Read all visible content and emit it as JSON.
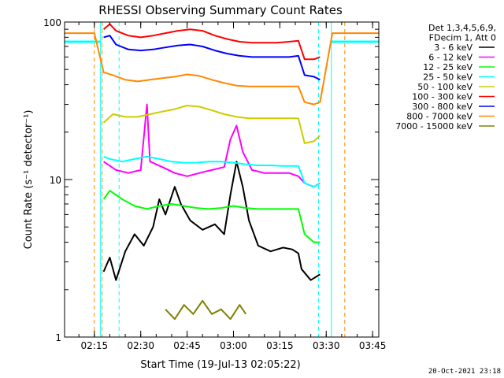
{
  "chart_data": {
    "type": "line",
    "title": "RHESSI Observing Summary Count Rates",
    "xlabel": "Start Time (19-Jul-13 02:05:22)",
    "ylabel": "Count Rate (s⁻¹ detector⁻¹)",
    "x_scale": "time",
    "xlim": [
      "02:05:22",
      "03:47:00"
    ],
    "x_ticks": [
      "02:15",
      "02:30",
      "02:45",
      "03:00",
      "03:15",
      "03:30",
      "03:45"
    ],
    "y_scale": "log",
    "ylim": [
      1,
      100
    ],
    "y_ticks": [
      "1",
      "10",
      "100"
    ],
    "legend": {
      "placement": "right",
      "header": [
        "Det 1,3,4,5,6,9,",
        "FDecim 1, Att 0"
      ]
    },
    "series": [
      {
        "name": "3 - 6 keV",
        "color": "#000000",
        "points": [
          [
            "02:18",
            2.6
          ],
          [
            "02:20",
            3.2
          ],
          [
            "02:22",
            2.3
          ],
          [
            "02:25",
            3.5
          ],
          [
            "02:28",
            4.5
          ],
          [
            "02:31",
            3.8
          ],
          [
            "02:34",
            5.0
          ],
          [
            "02:36",
            7.5
          ],
          [
            "02:38",
            6.0
          ],
          [
            "02:41",
            9.0
          ],
          [
            "02:43",
            7.0
          ],
          [
            "02:46",
            5.5
          ],
          [
            "02:50",
            4.8
          ],
          [
            "02:54",
            5.2
          ],
          [
            "02:57",
            4.5
          ],
          [
            "02:59",
            8.0
          ],
          [
            "03:01",
            13.0
          ],
          [
            "03:03",
            9.0
          ],
          [
            "03:05",
            5.5
          ],
          [
            "03:08",
            3.8
          ],
          [
            "03:12",
            3.5
          ],
          [
            "03:16",
            3.7
          ],
          [
            "03:19",
            3.6
          ],
          [
            "03:21",
            3.4
          ],
          [
            "03:22",
            2.7
          ],
          [
            "03:25",
            2.3
          ],
          [
            "03:28",
            2.5
          ]
        ]
      },
      {
        "name": "6 - 12 keV",
        "color": "#ff00ff",
        "points": [
          [
            "02:18",
            13.0
          ],
          [
            "02:22",
            11.5
          ],
          [
            "02:26",
            11.0
          ],
          [
            "02:30",
            11.5
          ],
          [
            "02:32",
            30.0
          ],
          [
            "02:33",
            13.0
          ],
          [
            "02:37",
            12.0
          ],
          [
            "02:41",
            11.0
          ],
          [
            "02:45",
            10.5
          ],
          [
            "02:49",
            11.0
          ],
          [
            "02:53",
            11.5
          ],
          [
            "02:57",
            12.0
          ],
          [
            "02:59",
            18.0
          ],
          [
            "03:01",
            22.0
          ],
          [
            "03:03",
            15.0
          ],
          [
            "03:06",
            11.5
          ],
          [
            "03:10",
            11.0
          ],
          [
            "03:14",
            11.0
          ],
          [
            "03:18",
            11.0
          ],
          [
            "03:21",
            10.5
          ],
          [
            "03:23",
            9.5
          ],
          [
            "03:26",
            9.0
          ],
          [
            "03:28",
            9.5
          ]
        ]
      },
      {
        "name": "12 - 25 keV",
        "color": "#00ff00",
        "points": [
          [
            "02:18",
            7.5
          ],
          [
            "02:20",
            8.5
          ],
          [
            "02:24",
            7.5
          ],
          [
            "02:28",
            6.8
          ],
          [
            "02:32",
            6.5
          ],
          [
            "02:36",
            6.8
          ],
          [
            "02:40",
            7.0
          ],
          [
            "02:44",
            6.8
          ],
          [
            "02:48",
            6.6
          ],
          [
            "02:52",
            6.5
          ],
          [
            "02:56",
            6.6
          ],
          [
            "03:00",
            6.8
          ],
          [
            "03:04",
            6.6
          ],
          [
            "03:08",
            6.5
          ],
          [
            "03:12",
            6.5
          ],
          [
            "03:16",
            6.5
          ],
          [
            "03:21",
            6.5
          ],
          [
            "03:23",
            4.5
          ],
          [
            "03:26",
            4.0
          ],
          [
            "03:28",
            4.0
          ]
        ]
      },
      {
        "name": "25 - 50 keV",
        "color": "#00ffff",
        "points": [
          [
            "02:18",
            14.0
          ],
          [
            "02:20",
            13.5
          ],
          [
            "02:24",
            13.0
          ],
          [
            "02:28",
            13.5
          ],
          [
            "02:32",
            14.0
          ],
          [
            "02:36",
            13.5
          ],
          [
            "02:40",
            13.0
          ],
          [
            "02:44",
            12.8
          ],
          [
            "02:48",
            12.8
          ],
          [
            "02:52",
            13.0
          ],
          [
            "02:56",
            13.0
          ],
          [
            "03:00",
            12.8
          ],
          [
            "03:04",
            12.5
          ],
          [
            "03:08",
            12.3
          ],
          [
            "03:12",
            12.3
          ],
          [
            "03:16",
            12.2
          ],
          [
            "03:21",
            12.2
          ],
          [
            "03:23",
            9.5
          ],
          [
            "03:26",
            9.0
          ],
          [
            "03:28",
            9.5
          ]
        ]
      },
      {
        "name": "50 - 100 keV",
        "color": "#cccc00",
        "points": [
          [
            "02:18",
            23.0
          ],
          [
            "02:21",
            26.0
          ],
          [
            "02:25",
            25.0
          ],
          [
            "02:29",
            25.0
          ],
          [
            "02:33",
            26.0
          ],
          [
            "02:37",
            27.0
          ],
          [
            "02:41",
            28.0
          ],
          [
            "02:45",
            29.5
          ],
          [
            "02:49",
            29.0
          ],
          [
            "02:53",
            27.5
          ],
          [
            "02:57",
            26.0
          ],
          [
            "03:01",
            25.0
          ],
          [
            "03:05",
            24.5
          ],
          [
            "03:09",
            24.5
          ],
          [
            "03:13",
            24.5
          ],
          [
            "03:17",
            24.5
          ],
          [
            "03:21",
            24.5
          ],
          [
            "03:23",
            17.0
          ],
          [
            "03:26",
            17.5
          ],
          [
            "03:28",
            19.0
          ]
        ]
      },
      {
        "name": "100 - 300 keV",
        "color": "#ff0000",
        "points": [
          [
            "02:18",
            90.0
          ],
          [
            "02:20",
            97.0
          ],
          [
            "02:22",
            88.0
          ],
          [
            "02:26",
            82.0
          ],
          [
            "02:30",
            80.0
          ],
          [
            "02:34",
            82.0
          ],
          [
            "02:38",
            85.0
          ],
          [
            "02:42",
            88.0
          ],
          [
            "02:46",
            90.0
          ],
          [
            "02:50",
            88.0
          ],
          [
            "02:54",
            82.0
          ],
          [
            "02:58",
            78.0
          ],
          [
            "03:02",
            75.0
          ],
          [
            "03:06",
            74.0
          ],
          [
            "03:10",
            74.0
          ],
          [
            "03:14",
            74.0
          ],
          [
            "03:18",
            75.0
          ],
          [
            "03:21",
            76.0
          ],
          [
            "03:23",
            58.0
          ],
          [
            "03:26",
            58.0
          ],
          [
            "03:28",
            60.0
          ]
        ]
      },
      {
        "name": "300 - 800 keV",
        "color": "#0000ff",
        "points": [
          [
            "02:18",
            80.0
          ],
          [
            "02:20",
            82.0
          ],
          [
            "02:22",
            72.0
          ],
          [
            "02:26",
            67.0
          ],
          [
            "02:30",
            66.0
          ],
          [
            "02:34",
            67.0
          ],
          [
            "02:38",
            69.0
          ],
          [
            "02:42",
            71.0
          ],
          [
            "02:46",
            72.0
          ],
          [
            "02:50",
            70.0
          ],
          [
            "02:54",
            66.0
          ],
          [
            "02:58",
            63.0
          ],
          [
            "03:02",
            61.0
          ],
          [
            "03:06",
            60.0
          ],
          [
            "03:10",
            60.0
          ],
          [
            "03:14",
            60.0
          ],
          [
            "03:18",
            60.0
          ],
          [
            "03:21",
            61.0
          ],
          [
            "03:23",
            46.0
          ],
          [
            "03:26",
            45.0
          ],
          [
            "03:28",
            43.0
          ]
        ]
      },
      {
        "name": "800 - 7000 keV",
        "color": "#ff8800",
        "points": [
          [
            "02:05:22",
            85.0
          ],
          [
            "02:15",
            85.0
          ],
          [
            "02:18",
            48.0
          ],
          [
            "02:21",
            46.0
          ],
          [
            "02:25",
            43.0
          ],
          [
            "02:29",
            42.0
          ],
          [
            "02:33",
            43.0
          ],
          [
            "02:37",
            44.0
          ],
          [
            "02:41",
            45.0
          ],
          [
            "02:45",
            46.5
          ],
          [
            "02:49",
            45.5
          ],
          [
            "02:53",
            43.0
          ],
          [
            "02:57",
            41.0
          ],
          [
            "03:01",
            39.5
          ],
          [
            "03:05",
            39.0
          ],
          [
            "03:09",
            39.0
          ],
          [
            "03:13",
            39.0
          ],
          [
            "03:17",
            39.0
          ],
          [
            "03:21",
            39.0
          ],
          [
            "03:23",
            31.0
          ],
          [
            "03:26",
            30.0
          ],
          [
            "03:28",
            31.0
          ],
          [
            "03:32",
            85.0
          ],
          [
            "03:47",
            85.0
          ]
        ]
      },
      {
        "name": "7000 - 15000 keV",
        "color": "#808000",
        "points": [
          [
            "02:38",
            1.5
          ],
          [
            "02:41",
            1.3
          ],
          [
            "02:44",
            1.6
          ],
          [
            "02:47",
            1.4
          ],
          [
            "02:50",
            1.7
          ],
          [
            "02:53",
            1.4
          ],
          [
            "02:56",
            1.5
          ],
          [
            "02:59",
            1.3
          ],
          [
            "03:02",
            1.6
          ],
          [
            "03:04",
            1.4
          ]
        ]
      }
    ],
    "markers": [
      {
        "color": "#00ffff",
        "style": "solid",
        "x": [
          "02:05:22",
          "02:17:00",
          "03:31:40",
          "03:47:00"
        ],
        "y": 75
      },
      {
        "color": "#ff8800",
        "style": "dashed",
        "x": [
          "02:15:00",
          "02:17:30",
          "03:36:00"
        ]
      },
      {
        "color": "#00ffff",
        "style": "dashed",
        "x": [
          "02:23:00",
          "03:27:30"
        ]
      }
    ]
  },
  "footer": {
    "timestamp": "20-Oct-2021 23:18"
  },
  "colors": {
    "background": "#ffffff",
    "axis": "#000000"
  }
}
